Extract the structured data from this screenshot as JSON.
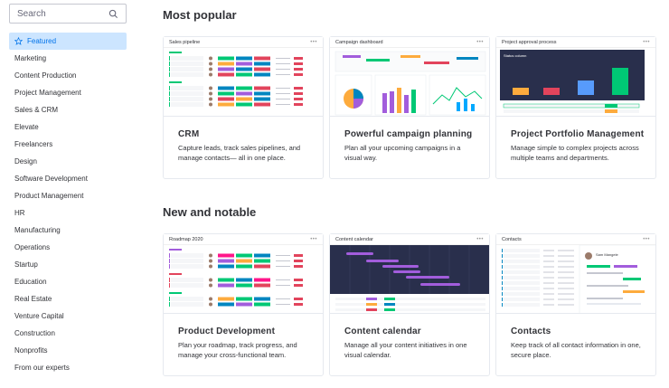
{
  "search": {
    "placeholder": "Search"
  },
  "sidebar": {
    "items": [
      {
        "label": "Featured",
        "active": true
      },
      {
        "label": "Marketing"
      },
      {
        "label": "Content Production"
      },
      {
        "label": "Project Management"
      },
      {
        "label": "Sales & CRM"
      },
      {
        "label": "Elevate"
      },
      {
        "label": "Freelancers"
      },
      {
        "label": "Design"
      },
      {
        "label": "Software Development"
      },
      {
        "label": "Product Management"
      },
      {
        "label": "HR"
      },
      {
        "label": "Manufacturing"
      },
      {
        "label": "Operations"
      },
      {
        "label": "Startup"
      },
      {
        "label": "Education"
      },
      {
        "label": "Real Estate"
      },
      {
        "label": "Venture Capital"
      },
      {
        "label": "Construction"
      },
      {
        "label": "Nonprofits"
      },
      {
        "label": "From our experts"
      }
    ]
  },
  "sections": {
    "popular": "Most popular",
    "new": "New and notable"
  },
  "cards": [
    {
      "thumb_title": "Sales pipeline",
      "title": "CRM",
      "desc": "Capture leads, track sales pipelines, and manage contacts— all in one place."
    },
    {
      "thumb_title": "Campaign dashboard",
      "title": "Powerful campaign planning",
      "desc": "Plan all your upcoming campaigns in a visual way."
    },
    {
      "thumb_title": "Project approval process",
      "thumb_sub": "Status column",
      "title": "Project Portfolio Management",
      "desc": "Manage simple to complex projects across multiple teams and departments."
    },
    {
      "thumb_title": "Roadmap 2020",
      "title": "Product Development",
      "desc": "Plan your roadmap, track progress, and manage your cross-functional team."
    },
    {
      "thumb_title": "Content calendar",
      "title": "Content calendar",
      "desc": "Manage all your content initiatives in one visual calendar."
    },
    {
      "thumb_title": "Contacts",
      "thumb_person": "Sam Mangele",
      "title": "Contacts",
      "desc": "Keep track of all contact information in one, secure place."
    }
  ],
  "colors": {
    "accent": "#0073ea",
    "active_bg": "#cce5ff",
    "dark_board": "#292f4c",
    "green": "#00c875",
    "orange": "#fdab3d",
    "red": "#e2445c",
    "purple": "#a25ddc",
    "blue": "#0086c0",
    "pink": "#ff158a"
  }
}
